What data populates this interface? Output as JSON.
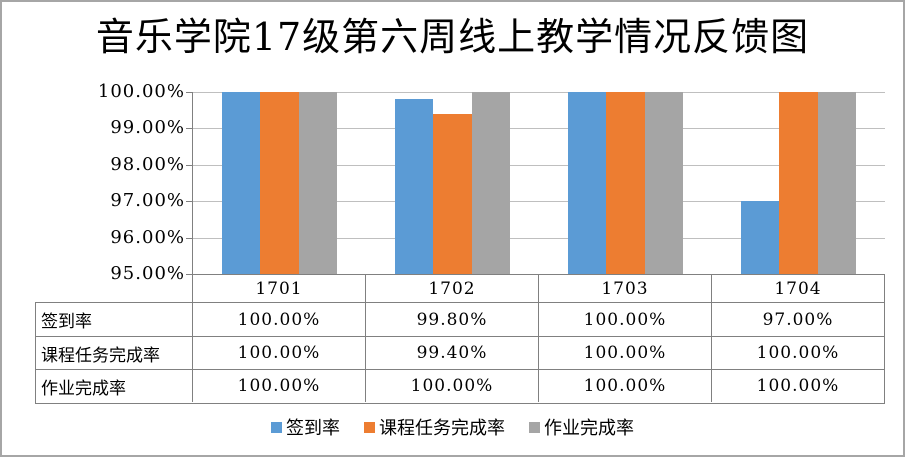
{
  "title": "音乐学院17级第六周线上教学情况反馈图",
  "chart_data": {
    "type": "bar",
    "title": "音乐学院17级第六周线上教学情况反馈图",
    "categories": [
      "1701",
      "1702",
      "1703",
      "1704"
    ],
    "series": [
      {
        "name": "签到率",
        "color": "#5B9BD5",
        "values": [
          100.0,
          99.8,
          100.0,
          97.0
        ],
        "formatted": [
          "100.00%",
          "99.80%",
          "100.00%",
          "97.00%"
        ]
      },
      {
        "name": "课程任务完成率",
        "color": "#ED7D31",
        "values": [
          100.0,
          99.4,
          100.0,
          100.0
        ],
        "formatted": [
          "100.00%",
          "99.40%",
          "100.00%",
          "100.00%"
        ]
      },
      {
        "name": "作业完成率",
        "color": "#A5A5A5",
        "values": [
          100.0,
          100.0,
          100.0,
          100.0
        ],
        "formatted": [
          "100.00%",
          "100.00%",
          "100.00%",
          "100.00%"
        ]
      }
    ],
    "xlabel": "",
    "ylabel": "",
    "ylim": [
      95,
      100
    ],
    "y_axis": {
      "min": 95,
      "max": 100,
      "step": 1,
      "tick_labels": [
        "100.00%",
        "99.00%",
        "98.00%",
        "97.00%",
        "96.00%",
        "95.00%"
      ]
    },
    "grid": true,
    "legend_position": "bottom",
    "legend_entries": [
      "签到率",
      "课程任务完成率",
      "作业完成率"
    ],
    "data_table_shown": true
  },
  "colors": {
    "series_blue": "#5B9BD5",
    "series_orange": "#ED7D31",
    "series_gray": "#A5A5A5",
    "axis_line": "#808080",
    "gridline": "#BFBFBF",
    "outer_border": "#A6A6A6",
    "text": "#000000",
    "background": "#FFFFFF"
  }
}
